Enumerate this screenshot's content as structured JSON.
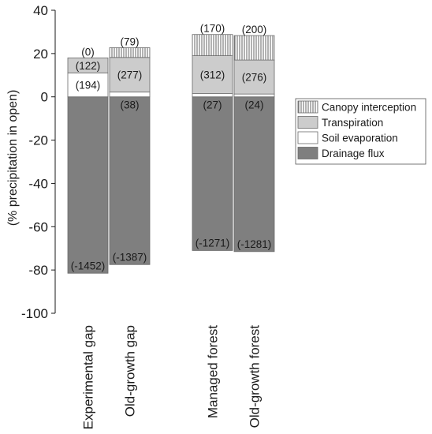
{
  "chart_data": {
    "type": "bar",
    "stacked": true,
    "title": "",
    "ylabel": "(% precipitation in open)",
    "xlabel": "",
    "ylim": [
      -100,
      40
    ],
    "yticks": [
      40,
      20,
      0,
      -20,
      -40,
      -60,
      -80,
      -100
    ],
    "grid": false,
    "legend_position": "right",
    "categories": [
      "Experimental gap",
      "Old-growth gap",
      "Managed forest",
      "Old-growth forest"
    ],
    "category_groups": [
      [
        0,
        1
      ],
      [
        2,
        3
      ]
    ],
    "series": [
      {
        "name": "Drainage flux",
        "color": "#7f7f7f",
        "pattern": "solid",
        "values": [
          -81.5,
          -77.5,
          -71.0,
          -71.5
        ],
        "labels": [
          "(-1452)",
          "(-1387)",
          "(-1271)",
          "(-1281)"
        ]
      },
      {
        "name": "Soil evaporation",
        "color": "#ffffff",
        "pattern": "solid",
        "values": [
          11.0,
          2.2,
          1.5,
          1.3
        ],
        "labels": [
          "(194)",
          "(38)",
          "(27)",
          "(24)"
        ]
      },
      {
        "name": "Transpiration",
        "color": "#cccccc",
        "pattern": "solid",
        "values": [
          7.0,
          16.0,
          17.5,
          15.7
        ],
        "labels": [
          "(122)",
          "(277)",
          "(312)",
          "(276)"
        ]
      },
      {
        "name": "Canopy interception",
        "color": "#ffffff",
        "pattern": "vertical-hatch",
        "values": [
          0.0,
          4.5,
          9.8,
          11.3
        ],
        "labels": [
          "(0)",
          "(79)",
          "(170)",
          "(200)"
        ]
      }
    ],
    "legend_order": [
      "Canopy interception",
      "Transpiration",
      "Soil evaporation",
      "Drainage flux"
    ]
  }
}
